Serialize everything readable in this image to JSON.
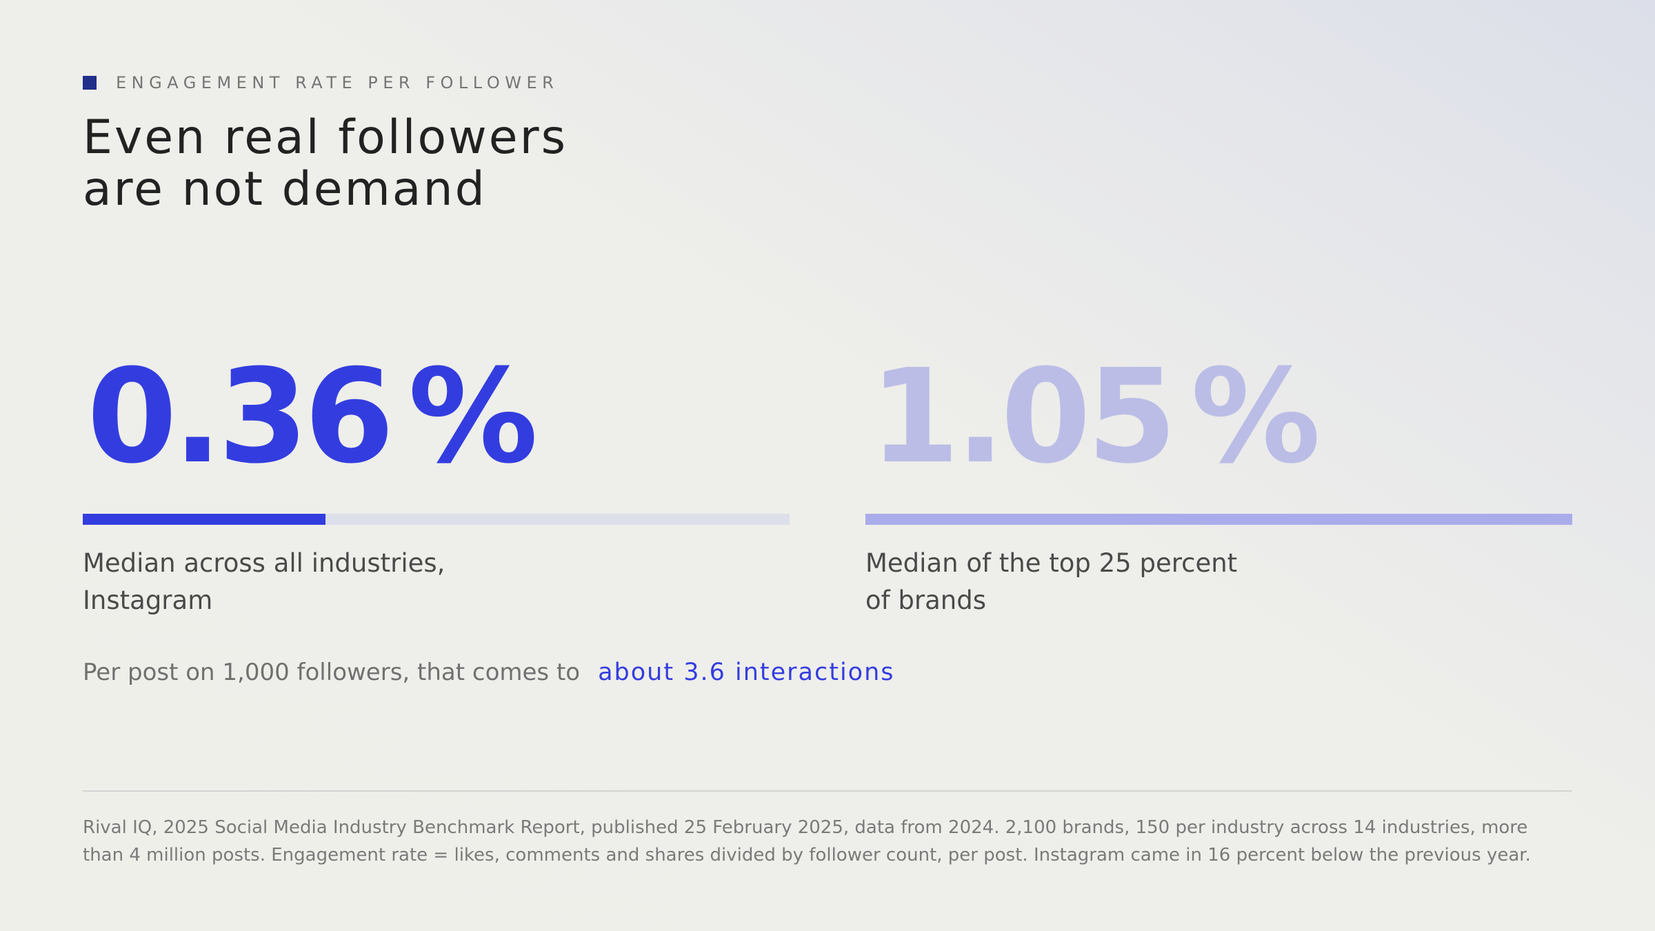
{
  "header": {
    "eyebrow": "ENGAGEMENT RATE PER FOLLOWER",
    "title_line1": "Even real followers",
    "title_line2": "are not demand",
    "accent_color": "#1f2f8a"
  },
  "stats": [
    {
      "value": "0.36",
      "unit": "%",
      "caption_line1": "Median across all industries,",
      "caption_line2": "Instagram",
      "bar_fill_fraction": 0.343,
      "color": "#333ddf"
    },
    {
      "value": "1.05",
      "unit": "%",
      "caption_line1": "Median of the top 25 percent",
      "caption_line2": "of brands",
      "bar_fill_fraction": 1.0,
      "color": "#a9acea"
    }
  ],
  "note": {
    "lead": "Per post on 1,000 followers, that comes to",
    "highlight": "about 3.6 interactions"
  },
  "footer": {
    "source": "Rival IQ, 2025 Social Media Industry Benchmark Report, published 25 February 2025, data from 2024. 2,100 brands, 150 per industry across 14 industries, more than 4 million posts. Engagement rate = likes, comments and shares divided by follower count, per post. Instagram came in 16 percent below the previous year."
  }
}
